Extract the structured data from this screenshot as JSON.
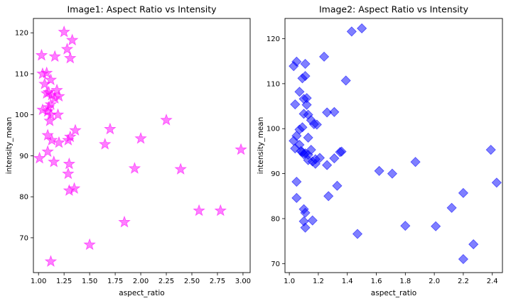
{
  "chart_data": [
    {
      "type": "scatter",
      "title": "Image1: Aspect Ratio vs Intensity",
      "xlabel": "aspect_ratio",
      "ylabel": "intensity_mean",
      "xlim": [
        0.95,
        3.07
      ],
      "ylim": [
        61.5,
        123.5
      ],
      "xticks": [
        1.0,
        1.25,
        1.5,
        1.75,
        2.0,
        2.25,
        2.5,
        2.75,
        3.0
      ],
      "xtick_labels": [
        "1.00",
        "1.25",
        "1.50",
        "1.75",
        "2.00",
        "2.25",
        "2.50",
        "2.75",
        "3.00"
      ],
      "yticks": [
        70,
        80,
        90,
        100,
        110,
        120
      ],
      "ytick_labels": [
        "70",
        "80",
        "90",
        "100",
        "110",
        "120"
      ],
      "marker": "star",
      "color": "#ff00ff",
      "points": [
        [
          1.03,
          114.5
        ],
        [
          1.25,
          120.2
        ],
        [
          1.28,
          116.0
        ],
        [
          1.31,
          113.8
        ],
        [
          1.33,
          118.2
        ],
        [
          1.16,
          114.2
        ],
        [
          1.04,
          110.0
        ],
        [
          1.08,
          110.2
        ],
        [
          1.12,
          108.5
        ],
        [
          1.06,
          107.5
        ],
        [
          1.1,
          105.5
        ],
        [
          1.08,
          105.2
        ],
        [
          1.13,
          104.8
        ],
        [
          1.18,
          106.0
        ],
        [
          1.2,
          104.5
        ],
        [
          1.16,
          104.0
        ],
        [
          1.12,
          102.5
        ],
        [
          1.1,
          101.8
        ],
        [
          1.04,
          101.2
        ],
        [
          1.09,
          100.8
        ],
        [
          1.12,
          100.0
        ],
        [
          1.19,
          100.0
        ],
        [
          1.11,
          98.5
        ],
        [
          1.36,
          96.2
        ],
        [
          1.09,
          95.0
        ],
        [
          1.13,
          93.8
        ],
        [
          1.2,
          93.2
        ],
        [
          1.29,
          93.8
        ],
        [
          1.31,
          94.6
        ],
        [
          1.7,
          96.5
        ],
        [
          1.01,
          89.4
        ],
        [
          1.09,
          91.0
        ],
        [
          1.15,
          88.5
        ],
        [
          1.3,
          88.0
        ],
        [
          1.29,
          85.6
        ],
        [
          1.3,
          81.5
        ],
        [
          1.35,
          82.0
        ],
        [
          1.65,
          92.8
        ],
        [
          2.0,
          94.2
        ],
        [
          1.94,
          86.9
        ],
        [
          2.25,
          98.7
        ],
        [
          2.39,
          86.7
        ],
        [
          2.98,
          91.5
        ],
        [
          2.57,
          76.6
        ],
        [
          2.78,
          76.6
        ],
        [
          1.84,
          73.8
        ],
        [
          1.5,
          68.3
        ],
        [
          1.12,
          64.2
        ]
      ]
    },
    {
      "type": "scatter",
      "title": "Image2: Aspect Ratio vs Intensity",
      "xlabel": "aspect_ratio",
      "ylabel": "intensity_mean",
      "xlim": [
        0.97,
        2.47
      ],
      "ylim": [
        68.0,
        124.5
      ],
      "xticks": [
        1.0,
        1.2,
        1.4,
        1.6,
        1.8,
        2.0,
        2.2,
        2.4
      ],
      "xtick_labels": [
        "1.0",
        "1.2",
        "1.4",
        "1.6",
        "1.8",
        "2.0",
        "2.2",
        "2.4"
      ],
      "yticks": [
        70,
        80,
        90,
        100,
        110,
        120
      ],
      "yticks_labels_note": "",
      "ytick_labels": [
        "70",
        "80",
        "90",
        "100",
        "110",
        "120"
      ],
      "marker": "diamond",
      "color": "#0000ff",
      "points": [
        [
          1.03,
          113.9
        ],
        [
          1.05,
          114.9
        ],
        [
          1.11,
          114.4
        ],
        [
          1.43,
          121.6
        ],
        [
          1.5,
          122.3
        ],
        [
          1.24,
          116.0
        ],
        [
          1.09,
          111.2
        ],
        [
          1.11,
          111.7
        ],
        [
          1.39,
          110.7
        ],
        [
          1.07,
          108.2
        ],
        [
          1.1,
          106.6
        ],
        [
          1.12,
          106.8
        ],
        [
          1.04,
          105.4
        ],
        [
          1.12,
          105.3
        ],
        [
          1.1,
          103.3
        ],
        [
          1.13,
          103.1
        ],
        [
          1.26,
          103.6
        ],
        [
          1.31,
          103.7
        ],
        [
          1.15,
          101.9
        ],
        [
          1.17,
          101.0
        ],
        [
          1.19,
          100.9
        ],
        [
          1.09,
          100.3
        ],
        [
          1.07,
          99.8
        ],
        [
          1.05,
          98.4
        ],
        [
          1.13,
          98.0
        ],
        [
          1.03,
          97.3
        ],
        [
          1.07,
          96.4
        ],
        [
          1.04,
          95.6
        ],
        [
          1.08,
          95.0
        ],
        [
          1.09,
          94.8
        ],
        [
          1.11,
          94.5
        ],
        [
          1.1,
          94.3
        ],
        [
          1.13,
          94.2
        ],
        [
          1.15,
          95.3
        ],
        [
          1.18,
          93.2
        ],
        [
          1.13,
          93.0
        ],
        [
          1.16,
          92.7
        ],
        [
          1.18,
          92.2
        ],
        [
          1.21,
          93.5
        ],
        [
          1.26,
          91.9
        ],
        [
          1.31,
          93.4
        ],
        [
          1.35,
          94.8
        ],
        [
          1.36,
          94.9
        ],
        [
          1.05,
          88.2
        ],
        [
          1.33,
          87.3
        ],
        [
          1.62,
          90.6
        ],
        [
          1.71,
          90.0
        ],
        [
          1.87,
          92.6
        ],
        [
          2.39,
          95.3
        ],
        [
          2.43,
          88.0
        ],
        [
          1.05,
          84.6
        ],
        [
          1.27,
          85.0
        ],
        [
          2.2,
          85.7
        ],
        [
          1.1,
          82.1
        ],
        [
          1.11,
          81.3
        ],
        [
          1.1,
          79.4
        ],
        [
          1.16,
          79.6
        ],
        [
          1.11,
          78.0
        ],
        [
          1.47,
          76.6
        ],
        [
          1.8,
          78.4
        ],
        [
          2.01,
          78.3
        ],
        [
          2.12,
          82.4
        ],
        [
          2.27,
          74.3
        ],
        [
          2.2,
          71.0
        ]
      ]
    }
  ]
}
